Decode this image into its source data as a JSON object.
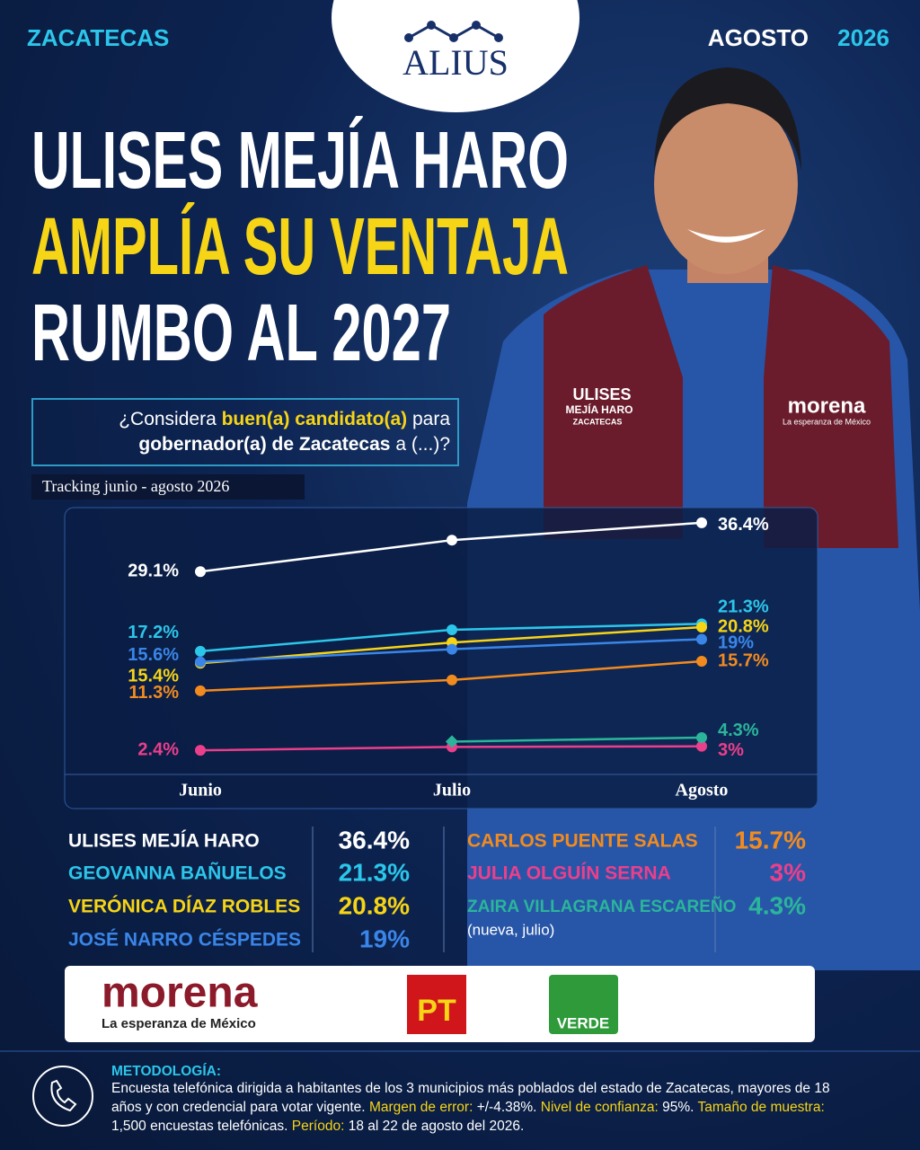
{
  "header": {
    "region": "ZACATECAS",
    "month": "AGOSTO",
    "year": "2026",
    "brand": "ALIUS"
  },
  "headline": [
    "ULISES MEJÍA HARO",
    "AMPLÍA SU VENTAJA",
    "RUMBO AL 2027"
  ],
  "question": [
    "¿Considera",
    "buen(a) candidato(a)",
    "para",
    "gobernador(a) de Zacatecas",
    "a (...)?"
  ],
  "photo": {
    "vest_name": "ULISES",
    "vest_surname": "MEJÍA HARO",
    "vest_place": "ZACATECAS",
    "vest_party": "morena",
    "vest_slogan": "La esperanza de México"
  },
  "tracking_label": "Tracking junio - agosto 2026",
  "chart_data": {
    "type": "line",
    "categories": [
      "Junio",
      "Julio",
      "Agosto"
    ],
    "ylim": [
      0,
      40
    ],
    "series": [
      {
        "name": "ULISES MEJÍA HARO",
        "color": "#ffffff",
        "values": [
          29.1,
          33.8,
          36.4
        ],
        "value_labels": [
          "29.1%",
          null,
          "36.4%"
        ]
      },
      {
        "name": "GEOVANNA BAÑUELOS",
        "color": "#2cc6ea",
        "values": [
          17.2,
          20.4,
          21.3
        ],
        "value_labels": [
          "17.2%",
          null,
          "21.3%"
        ]
      },
      {
        "name": "VERÓNICA DÍAZ ROBLES",
        "color": "#f6d416",
        "values": [
          15.4,
          18.5,
          20.8
        ],
        "value_labels": [
          "15.4%",
          null,
          "20.8%"
        ]
      },
      {
        "name": "JOSÉ NARRO CÉSPEDES",
        "color": "#3a86e8",
        "values": [
          15.6,
          17.5,
          19
        ],
        "value_labels": [
          "15.6%",
          null,
          "19%"
        ]
      },
      {
        "name": "CARLOS PUENTE SALAS",
        "color": "#f28b1f",
        "values": [
          11.3,
          12.9,
          15.7
        ],
        "value_labels": [
          "11.3%",
          null,
          "15.7%"
        ]
      },
      {
        "name": "JULIA OLGUÍN SERNA",
        "color": "#ec3f8b",
        "values": [
          2.4,
          2.9,
          3
        ],
        "value_labels": [
          "2.4%",
          null,
          "3%"
        ]
      },
      {
        "name": "ZAIRA VILLAGRANA ESCAREÑO",
        "color": "#2bb59a",
        "marker": "diamond",
        "values": [
          null,
          3.7,
          4.3
        ],
        "value_labels": [
          null,
          null,
          "4.3%"
        ]
      }
    ]
  },
  "table_note": "(nueva, julio)",
  "logos": {
    "morena": "morena",
    "morena_slogan": "La esperanza de México",
    "pt": "PT",
    "verde": "VERDE"
  },
  "methodology": {
    "title": "METODOLOGÍA:",
    "intro": "Encuesta telefónica dirigida a habitantes de los 3 municipios más poblados del estado de Zacatecas, mayores de 18 años y con credencial para votar vigente.",
    "items": [
      {
        "label": "Margen de error:",
        "text": "+/-4.38%."
      },
      {
        "label": "Nivel de confianza:",
        "text": "95%."
      },
      {
        "label": "Tamaño de muestra:",
        "text": "1,500 encuestas telefónicas."
      },
      {
        "label": "Período:",
        "text": "18 al 22 de agosto del 2026."
      }
    ]
  }
}
